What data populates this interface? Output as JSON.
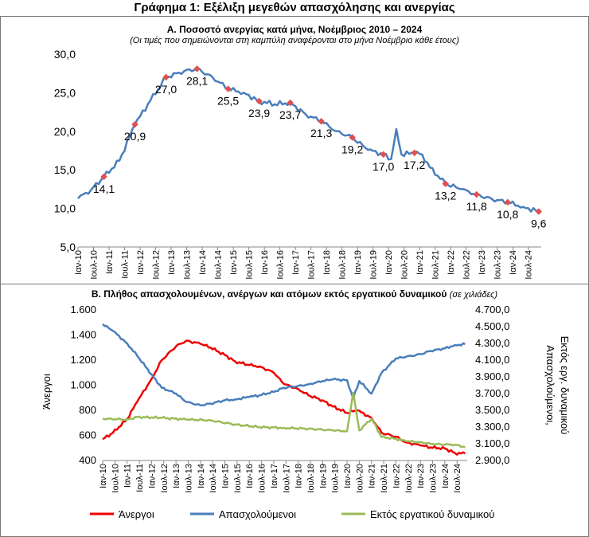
{
  "figure_title": "Γράφημα 1: Εξέλιξη μεγεθών απασχόλησης και ανεργίας",
  "panel_a": {
    "title": "Α. Ποσοστό ανεργίας κατά μήνα, Νοέμβριος 2010 – 2024",
    "subtitle": "(Οι τιμές που σημειώνονται στη καμπύλη αναφέρονται στο μήνα Νοέμβριο κάθε έτους)"
  },
  "panel_b": {
    "title": "Β. Πλήθος απασχολουμένων, ανέργων και ατόμων εκτός εργατικού δυναμικού",
    "subtitle": "(σε χιλιάδες)"
  },
  "x_tick_labels": [
    "Ιαν-10",
    "Ιουλ-10",
    "Ιαν-11",
    "Ιουλ-11",
    "Ιαν-12",
    "Ιουλ-12",
    "Ιαν-13",
    "Ιουλ-13",
    "Ιαν-14",
    "Ιουλ-14",
    "Ιαν-15",
    "Ιουλ-15",
    "Ιαν-16",
    "Ιουλ-16",
    "Ιαν-17",
    "Ιουλ-17",
    "Ιαν-18",
    "Ιουλ-18",
    "Ιαν-19",
    "Ιουλ-19",
    "Ιαν-20",
    "Ιουλ-20",
    "Ιαν-21",
    "Ιουλ-21",
    "Ιαν-22",
    "Ιουλ-22",
    "Ιαν-23",
    "Ιουλ-23",
    "Ιαν-24",
    "Ιουλ-24"
  ],
  "colors": {
    "unemployment_rate": "#4a7ebb",
    "november_marker": "#e05050",
    "unemployed": "#ee0000",
    "employed": "#4a7ebb",
    "inactive": "#9bbb59"
  },
  "chart_data": [
    {
      "type": "line",
      "ylim": [
        5,
        30
      ],
      "y_ticks": [
        "5,0",
        "10,0",
        "15,0",
        "20,0",
        "25,0",
        "30,0"
      ],
      "grid": false,
      "anchors": [
        {
          "date": "2010-01",
          "value": 11.3
        },
        {
          "date": "2010-06",
          "value": 12.4
        },
        {
          "date": "2010-11",
          "value": 14.1
        },
        {
          "date": "2011-05",
          "value": 16.2
        },
        {
          "date": "2011-11",
          "value": 20.9
        },
        {
          "date": "2012-05",
          "value": 24.0
        },
        {
          "date": "2012-11",
          "value": 27.0
        },
        {
          "date": "2013-06",
          "value": 27.8
        },
        {
          "date": "2013-11",
          "value": 28.1
        },
        {
          "date": "2014-05",
          "value": 27.0
        },
        {
          "date": "2014-11",
          "value": 25.5
        },
        {
          "date": "2015-05",
          "value": 25.0
        },
        {
          "date": "2015-11",
          "value": 23.9
        },
        {
          "date": "2016-05",
          "value": 23.5
        },
        {
          "date": "2016-11",
          "value": 23.7
        },
        {
          "date": "2017-05",
          "value": 22.2
        },
        {
          "date": "2017-11",
          "value": 21.3
        },
        {
          "date": "2018-05",
          "value": 20.0
        },
        {
          "date": "2018-11",
          "value": 19.2
        },
        {
          "date": "2019-05",
          "value": 17.6
        },
        {
          "date": "2019-11",
          "value": 17.0
        },
        {
          "date": "2020-02",
          "value": 16.4
        },
        {
          "date": "2020-04",
          "value": 20.3
        },
        {
          "date": "2020-06",
          "value": 17.0
        },
        {
          "date": "2020-11",
          "value": 17.2
        },
        {
          "date": "2021-02",
          "value": 17.0
        },
        {
          "date": "2021-05",
          "value": 15.3
        },
        {
          "date": "2021-11",
          "value": 13.2
        },
        {
          "date": "2022-05",
          "value": 12.5
        },
        {
          "date": "2022-11",
          "value": 11.8
        },
        {
          "date": "2023-05",
          "value": 11.2
        },
        {
          "date": "2023-11",
          "value": 10.8
        },
        {
          "date": "2024-05",
          "value": 10.2
        },
        {
          "date": "2024-11",
          "value": 9.6
        }
      ],
      "annotations": [
        {
          "date": "2010-11",
          "label": "14,1",
          "value": 14.1
        },
        {
          "date": "2011-11",
          "label": "20,9",
          "value": 20.9
        },
        {
          "date": "2012-11",
          "label": "27,0",
          "value": 27.0
        },
        {
          "date": "2013-11",
          "label": "28,1",
          "value": 28.1
        },
        {
          "date": "2014-11",
          "label": "25,5",
          "value": 25.5
        },
        {
          "date": "2015-11",
          "label": "23,9",
          "value": 23.9
        },
        {
          "date": "2016-11",
          "label": "23,7",
          "value": 23.7
        },
        {
          "date": "2017-11",
          "label": "21,3",
          "value": 21.3
        },
        {
          "date": "2018-11",
          "label": "19,2",
          "value": 19.2
        },
        {
          "date": "2019-11",
          "label": "17,0",
          "value": 17.0
        },
        {
          "date": "2020-11",
          "label": "17,2",
          "value": 17.2
        },
        {
          "date": "2021-11",
          "label": "13,2",
          "value": 13.2
        },
        {
          "date": "2022-11",
          "label": "11,8",
          "value": 11.8
        },
        {
          "date": "2023-11",
          "label": "10,8",
          "value": 10.8
        },
        {
          "date": "2024-11",
          "label": "9,6",
          "value": 9.6
        }
      ]
    },
    {
      "type": "line",
      "ylabel_left": "Άνεργοι",
      "ylabel_right": "Απασχολούμενοι, Εκτός εργ. δυναμικού",
      "ylim_left": [
        400,
        1600
      ],
      "ylim_right": [
        2900,
        4700
      ],
      "y_ticks_left": [
        "400",
        "600",
        "800",
        "1.000",
        "1.200",
        "1.400",
        "1.600"
      ],
      "y_ticks_right": [
        "2.900,0",
        "3.100,0",
        "3.300,0",
        "3.500,0",
        "3.700,0",
        "3.900,0",
        "4.100,0",
        "4.300,0",
        "4.500,0",
        "4.700,0"
      ],
      "legend": "bottom",
      "series": [
        {
          "name": "Άνεργοι",
          "axis": "left",
          "anchors": [
            {
              "date": "2010-01",
              "value": 570
            },
            {
              "date": "2010-06",
              "value": 620
            },
            {
              "date": "2011-01",
              "value": 730
            },
            {
              "date": "2011-06",
              "value": 870
            },
            {
              "date": "2012-01",
              "value": 1050
            },
            {
              "date": "2012-06",
              "value": 1200
            },
            {
              "date": "2013-01",
              "value": 1310
            },
            {
              "date": "2013-06",
              "value": 1355
            },
            {
              "date": "2014-01",
              "value": 1330
            },
            {
              "date": "2014-06",
              "value": 1300
            },
            {
              "date": "2015-01",
              "value": 1240
            },
            {
              "date": "2015-06",
              "value": 1190
            },
            {
              "date": "2016-01",
              "value": 1160
            },
            {
              "date": "2016-06",
              "value": 1150
            },
            {
              "date": "2017-01",
              "value": 1100
            },
            {
              "date": "2017-06",
              "value": 1010
            },
            {
              "date": "2018-01",
              "value": 970
            },
            {
              "date": "2018-06",
              "value": 920
            },
            {
              "date": "2019-01",
              "value": 880
            },
            {
              "date": "2019-06",
              "value": 830
            },
            {
              "date": "2020-01",
              "value": 780
            },
            {
              "date": "2020-06",
              "value": 800
            },
            {
              "date": "2021-01",
              "value": 740
            },
            {
              "date": "2021-06",
              "value": 620
            },
            {
              "date": "2022-01",
              "value": 590
            },
            {
              "date": "2022-06",
              "value": 545
            },
            {
              "date": "2023-01",
              "value": 520
            },
            {
              "date": "2023-06",
              "value": 505
            },
            {
              "date": "2024-01",
              "value": 495
            },
            {
              "date": "2024-06",
              "value": 460
            },
            {
              "date": "2024-11",
              "value": 455
            }
          ]
        },
        {
          "name": "Απασχολούμενοι",
          "axis": "right",
          "anchors": [
            {
              "date": "2010-01",
              "value": 4530
            },
            {
              "date": "2010-06",
              "value": 4450
            },
            {
              "date": "2011-01",
              "value": 4300
            },
            {
              "date": "2011-06",
              "value": 4150
            },
            {
              "date": "2012-01",
              "value": 3930
            },
            {
              "date": "2012-06",
              "value": 3770
            },
            {
              "date": "2013-01",
              "value": 3700
            },
            {
              "date": "2013-06",
              "value": 3600
            },
            {
              "date": "2014-01",
              "value": 3560
            },
            {
              "date": "2014-06",
              "value": 3580
            },
            {
              "date": "2015-01",
              "value": 3620
            },
            {
              "date": "2015-06",
              "value": 3630
            },
            {
              "date": "2016-01",
              "value": 3660
            },
            {
              "date": "2016-06",
              "value": 3680
            },
            {
              "date": "2017-01",
              "value": 3720
            },
            {
              "date": "2017-06",
              "value": 3770
            },
            {
              "date": "2018-01",
              "value": 3790
            },
            {
              "date": "2018-06",
              "value": 3810
            },
            {
              "date": "2019-01",
              "value": 3850
            },
            {
              "date": "2019-06",
              "value": 3870
            },
            {
              "date": "2020-01",
              "value": 3860
            },
            {
              "date": "2020-04",
              "value": 3640
            },
            {
              "date": "2020-07",
              "value": 3850
            },
            {
              "date": "2021-01",
              "value": 3700
            },
            {
              "date": "2021-06",
              "value": 3950
            },
            {
              "date": "2022-01",
              "value": 4120
            },
            {
              "date": "2022-06",
              "value": 4140
            },
            {
              "date": "2023-01",
              "value": 4170
            },
            {
              "date": "2023-06",
              "value": 4210
            },
            {
              "date": "2024-01",
              "value": 4240
            },
            {
              "date": "2024-06",
              "value": 4280
            },
            {
              "date": "2024-11",
              "value": 4290
            }
          ]
        },
        {
          "name": "Εκτός εργατικού δυναμικού",
          "axis": "right",
          "anchors": [
            {
              "date": "2010-01",
              "value": 3400
            },
            {
              "date": "2011-01",
              "value": 3390
            },
            {
              "date": "2011-06",
              "value": 3420
            },
            {
              "date": "2012-06",
              "value": 3410
            },
            {
              "date": "2013-06",
              "value": 3390
            },
            {
              "date": "2014-06",
              "value": 3380
            },
            {
              "date": "2015-06",
              "value": 3330
            },
            {
              "date": "2016-06",
              "value": 3300
            },
            {
              "date": "2017-06",
              "value": 3290
            },
            {
              "date": "2018-06",
              "value": 3280
            },
            {
              "date": "2019-06",
              "value": 3260
            },
            {
              "date": "2020-01",
              "value": 3250
            },
            {
              "date": "2020-04",
              "value": 3710
            },
            {
              "date": "2020-07",
              "value": 3260
            },
            {
              "date": "2021-01",
              "value": 3400
            },
            {
              "date": "2021-06",
              "value": 3180
            },
            {
              "date": "2022-01",
              "value": 3160
            },
            {
              "date": "2022-06",
              "value": 3130
            },
            {
              "date": "2023-01",
              "value": 3120
            },
            {
              "date": "2023-06",
              "value": 3100
            },
            {
              "date": "2024-01",
              "value": 3090
            },
            {
              "date": "2024-06",
              "value": 3090
            },
            {
              "date": "2024-11",
              "value": 3060
            }
          ]
        }
      ]
    }
  ]
}
